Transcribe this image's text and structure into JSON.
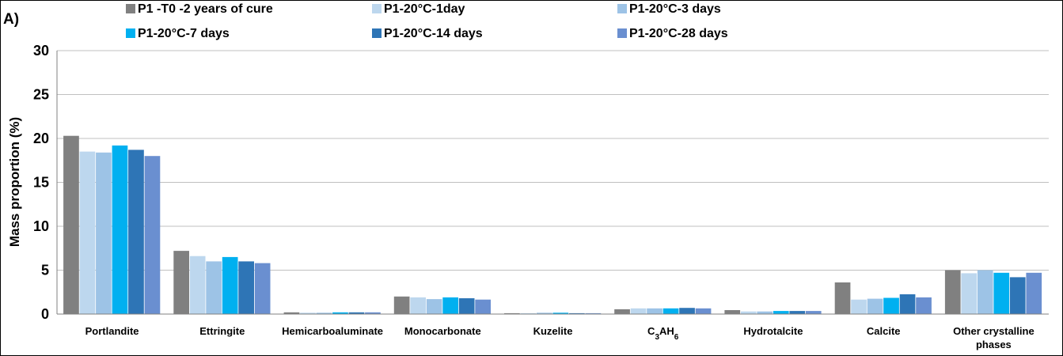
{
  "chart_data": {
    "type": "bar",
    "panel_label": "A)",
    "title": "",
    "xlabel": "",
    "ylabel": "Mass proportion (%)",
    "ylim": [
      0,
      30
    ],
    "yticks": [
      "0",
      "5",
      "10",
      "15",
      "20",
      "25",
      "30"
    ],
    "grid": "horizontal",
    "legend_position": "top",
    "categories": [
      {
        "main": "Portlandite",
        "sub": "",
        "tail": "",
        "line2": ""
      },
      {
        "main": "Ettringite",
        "sub": "",
        "tail": "",
        "line2": ""
      },
      {
        "main": "Hemicarboaluminate",
        "sub": "",
        "tail": "",
        "line2": ""
      },
      {
        "main": "Monocarbonate",
        "sub": "",
        "tail": "",
        "line2": ""
      },
      {
        "main": "Kuzelite",
        "sub": "",
        "tail": "",
        "line2": ""
      },
      {
        "main": "C",
        "sub": "3",
        "tail": "AH",
        "sub2": "6",
        "line2": ""
      },
      {
        "main": "Hydrotalcite",
        "sub": "",
        "tail": "",
        "line2": ""
      },
      {
        "main": "Calcite",
        "sub": "",
        "tail": "",
        "line2": ""
      },
      {
        "main": "Other crystalline",
        "sub": "",
        "tail": "",
        "line2": "phases"
      }
    ],
    "series": [
      {
        "name": "P1 -T0 -2 years of cure",
        "color": "#808080",
        "values": [
          20.3,
          7.2,
          0.2,
          2.0,
          0.1,
          0.55,
          0.45,
          3.6,
          5.0
        ]
      },
      {
        "name": "P1-20°C-1day",
        "color": "#bdd7ee",
        "values": [
          18.5,
          6.6,
          0.15,
          1.9,
          0.1,
          0.65,
          0.3,
          1.65,
          4.65
        ]
      },
      {
        "name": "P1-20°C-3 days",
        "color": "#9dc3e6",
        "values": [
          18.4,
          6.0,
          0.15,
          1.7,
          0.15,
          0.65,
          0.3,
          1.75,
          5.0
        ]
      },
      {
        "name": "P1-20°C-7 days",
        "color": "#00b0f0",
        "values": [
          19.2,
          6.5,
          0.2,
          1.9,
          0.15,
          0.65,
          0.35,
          1.85,
          4.7
        ]
      },
      {
        "name": "P1-20°C-14 days",
        "color": "#2e75b6",
        "values": [
          18.7,
          6.0,
          0.2,
          1.8,
          0.1,
          0.7,
          0.35,
          2.25,
          4.2
        ]
      },
      {
        "name": "P1-20°C-28 days",
        "color": "#6a8fd0",
        "values": [
          18.0,
          5.8,
          0.2,
          1.65,
          0.1,
          0.65,
          0.35,
          1.9,
          4.7
        ]
      }
    ]
  }
}
